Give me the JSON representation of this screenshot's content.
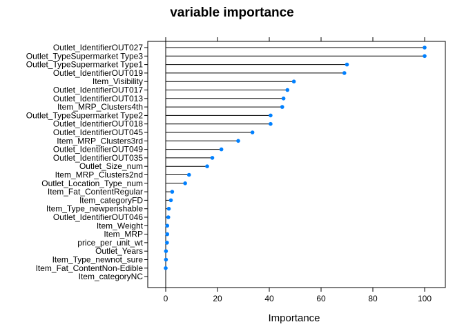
{
  "chart_data": {
    "type": "dot",
    "title": "variable importance",
    "xlabel": "Importance",
    "ylabel": "",
    "xlim": [
      -8,
      107
    ],
    "xticks": [
      0,
      20,
      40,
      60,
      80,
      100
    ],
    "xtick_labels": [
      "0",
      "20",
      "40",
      "60",
      "80",
      "100"
    ],
    "grid": false,
    "legend": "none",
    "point_color": "#0080ff",
    "line_color": "#000000",
    "categories": [
      "Outlet_IdentifierOUT027",
      "Outlet_TypeSupermarket Type3",
      "Outlet_TypeSupermarket Type1",
      "Outlet_IdentifierOUT019",
      "Item_Visibility",
      "Outlet_IdentifierOUT017",
      "Outlet_IdentifierOUT013",
      "Item_MRP_Clusters4th",
      "Outlet_TypeSupermarket Type2",
      "Outlet_IdentifierOUT018",
      "Outlet_IdentifierOUT045",
      "Item_MRP_Clusters3rd",
      "Outlet_IdentifierOUT049",
      "Outlet_IdentifierOUT035",
      "Outlet_Size_num",
      "Item_MRP_Clusters2nd",
      "Outlet_Location_Type_num",
      "Item_Fat_ContentRegular",
      "Item_categoryFD",
      "Item_Type_newperishable",
      "Outlet_IdentifierOUT046",
      "Item_Weight",
      "Item_MRP",
      "price_per_unit_wt",
      "Outlet_Years",
      "Item_Type_newnot_sure",
      "Item_Fat_ContentNon-Edible",
      "Item_categoryNC"
    ],
    "values": [
      100,
      100,
      70,
      69,
      49.5,
      47,
      45.5,
      45,
      40.5,
      40.5,
      33.5,
      28,
      21.5,
      18,
      16,
      9,
      7.5,
      2.5,
      2,
      1.2,
      1,
      0.6,
      0.6,
      0.5,
      0.1,
      0.1,
      0,
      null
    ]
  }
}
